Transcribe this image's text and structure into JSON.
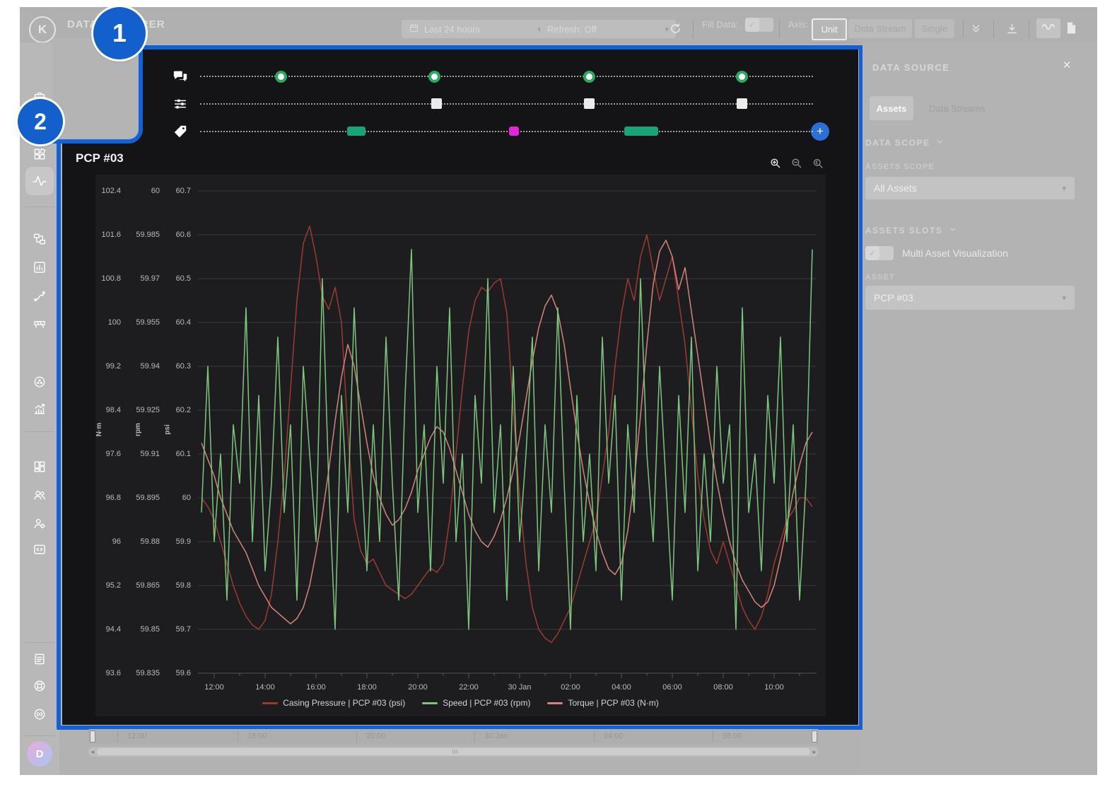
{
  "badges": {
    "one": "1",
    "two": "2"
  },
  "icons": {
    "chevron_down": "▾",
    "close": "×",
    "check": "✓",
    "plus": "+",
    "arrow_left": "◂",
    "arrow_right": "▸",
    "logo_letter": "K",
    "avatar_letter": "D"
  },
  "toolbar": {
    "title": "DATA EXPLORER",
    "time_range": "Last 24 hours",
    "refresh": "Refresh: Off",
    "fill_data_label": "Fill Data:",
    "axis_label": "Axis:",
    "axis_modes": [
      "Unit",
      "Data Stream",
      "Single"
    ],
    "axis_active": "Unit"
  },
  "tracks": {
    "rows": [
      {
        "icon": "chat-icon",
        "type": "dot",
        "markers": [
          {
            "pos": 13.1
          },
          {
            "pos": 38.2
          },
          {
            "pos": 63.4
          },
          {
            "pos": 88.4
          }
        ]
      },
      {
        "icon": "sliders-icon",
        "type": "square",
        "markers": [
          {
            "pos": 38.5
          },
          {
            "pos": 63.4
          },
          {
            "pos": 88.4
          }
        ]
      },
      {
        "icon": "tag-icon",
        "type": "pill",
        "markers": [
          {
            "pos": 25.5,
            "w": 26,
            "color": "#17a477"
          },
          {
            "pos": 51.2,
            "w": 14,
            "color": "#e326de"
          },
          {
            "pos": 72.0,
            "w": 48,
            "color": "#17a477"
          }
        ]
      }
    ]
  },
  "chart": {
    "title": "PCP #03",
    "chart_data": {
      "type": "line",
      "title": "PCP #03",
      "grid": true,
      "legend_position": "bottom",
      "x_tick_labels": [
        "12:00",
        "14:00",
        "16:00",
        "18:00",
        "20:00",
        "22:00",
        "30 Jan",
        "02:00",
        "04:00",
        "06:00",
        "08:00",
        "10:00"
      ],
      "axes": [
        {
          "unit": "N·m",
          "min": 93.6,
          "max": 102.4,
          "ticks": [
            "102.4",
            "101.6",
            "100.8",
            "100",
            "99.2",
            "98.4",
            "97.6",
            "96.8",
            "96",
            "95.2",
            "94.4",
            "93.6"
          ]
        },
        {
          "unit": "rpm",
          "min": 59.835,
          "max": 60.0,
          "ticks": [
            "60",
            "59.985",
            "59.97",
            "59.955",
            "59.94",
            "59.925",
            "59.91",
            "59.895",
            "59.88",
            "59.865",
            "59.85",
            "59.835"
          ]
        },
        {
          "unit": "psi",
          "min": 59.6,
          "max": 60.7,
          "ticks": [
            "60.7",
            "60.6",
            "60.5",
            "60.4",
            "60.3",
            "60.2",
            "60.1",
            "60",
            "59.9",
            "59.8",
            "59.7",
            "59.6"
          ]
        }
      ],
      "series": [
        {
          "name": "Casing Pressure | PCP #03 (psi)",
          "unit": "psi",
          "color": "#9c3a32",
          "min": 59.6,
          "max": 60.7,
          "values": [
            60.0,
            59.98,
            59.95,
            59.9,
            59.85,
            59.8,
            59.76,
            59.73,
            59.71,
            59.7,
            59.72,
            59.78,
            59.9,
            60.05,
            60.25,
            60.45,
            60.58,
            60.62,
            60.55,
            60.46,
            60.43,
            60.48,
            60.4,
            60.15,
            59.95,
            59.88,
            59.85,
            59.86,
            59.83,
            59.8,
            59.79,
            59.78,
            59.77,
            59.78,
            59.8,
            59.82,
            59.84,
            59.83,
            59.85,
            59.95,
            60.1,
            60.25,
            60.38,
            60.45,
            60.48,
            60.47,
            60.49,
            60.5,
            60.42,
            60.2,
            60.0,
            59.85,
            59.75,
            59.7,
            59.68,
            59.67,
            59.69,
            59.72,
            59.75,
            59.8,
            59.85,
            59.9,
            59.95,
            60.05,
            60.15,
            60.3,
            60.42,
            60.5,
            60.45,
            60.55,
            60.6,
            60.52,
            60.45,
            60.5,
            60.55,
            60.45,
            60.35,
            60.2,
            60.05,
            59.95,
            59.88,
            59.85,
            59.9,
            59.85,
            59.8,
            59.75,
            59.72,
            59.7,
            59.73,
            59.78,
            59.85,
            59.9,
            59.95,
            59.97,
            60.0,
            60.0,
            59.98
          ]
        },
        {
          "name": "Speed | PCP #03 (rpm)",
          "unit": "rpm",
          "color": "#7dc77d",
          "min": 59.835,
          "max": 60.0,
          "values": [
            59.89,
            59.94,
            59.88,
            59.91,
            59.86,
            59.92,
            59.9,
            59.96,
            59.88,
            59.93,
            59.87,
            59.9,
            59.95,
            59.89,
            59.92,
            59.86,
            59.94,
            59.91,
            59.88,
            59.97,
            59.9,
            59.85,
            59.93,
            59.89,
            59.96,
            59.91,
            59.87,
            59.92,
            59.88,
            59.95,
            59.9,
            59.86,
            59.93,
            59.98,
            59.89,
            59.92,
            59.87,
            59.94,
            59.9,
            59.96,
            59.88,
            59.91,
            59.85,
            59.93,
            59.9,
            59.97,
            59.89,
            59.92,
            59.86,
            59.94,
            59.88,
            59.91,
            59.95,
            59.87,
            59.92,
            59.89,
            59.96,
            59.9,
            59.85,
            59.93,
            59.88,
            59.91,
            59.87,
            59.95,
            59.9,
            59.93,
            59.86,
            59.92,
            59.89,
            59.97,
            59.91,
            59.88,
            59.94,
            59.9,
            59.86,
            59.93,
            59.89,
            59.95,
            59.87,
            59.91,
            59.88,
            59.94,
            59.9,
            59.92,
            59.85,
            59.96,
            59.89,
            59.91,
            59.87,
            59.93,
            59.9,
            59.95,
            59.88,
            59.92,
            59.86,
            59.9,
            59.98
          ]
        },
        {
          "name": "Torque | PCP #03 (N·m)",
          "unit": "N·m",
          "color": "#d4837b",
          "min": 93.6,
          "max": 102.4,
          "values": [
            97.8,
            97.5,
            97.2,
            96.8,
            96.5,
            96.2,
            96.0,
            95.8,
            95.5,
            95.2,
            95.0,
            94.8,
            94.7,
            94.6,
            94.5,
            94.6,
            94.8,
            95.2,
            95.8,
            96.5,
            97.3,
            98.2,
            99.0,
            99.6,
            99.2,
            98.5,
            97.8,
            97.2,
            96.8,
            96.5,
            96.3,
            96.4,
            96.6,
            96.9,
            97.3,
            97.6,
            97.9,
            98.1,
            98.0,
            97.7,
            97.3,
            96.9,
            96.5,
            96.2,
            96.0,
            95.9,
            96.1,
            96.4,
            96.8,
            97.3,
            97.9,
            98.6,
            99.3,
            99.9,
            100.3,
            100.5,
            100.2,
            99.6,
            98.8,
            98.0,
            97.3,
            96.7,
            96.2,
            95.8,
            95.5,
            95.4,
            95.6,
            96.2,
            97.1,
            98.3,
            99.6,
            100.7,
            101.3,
            101.5,
            101.2,
            100.6,
            101.0,
            100.2,
            99.4,
            98.6,
            97.8,
            97.1,
            96.5,
            96.0,
            95.6,
            95.3,
            95.1,
            94.9,
            94.8,
            94.9,
            95.2,
            95.7,
            96.3,
            96.9,
            97.4,
            97.8,
            98.0
          ]
        }
      ]
    }
  },
  "panel": {
    "header": "DATA SOURCE",
    "tabs": [
      "Assets",
      "Data Streams"
    ],
    "active_tab": "Assets",
    "data_scope_label": "DATA SCOPE",
    "assets_scope_label": "ASSETS SCOPE",
    "assets_scope_value": "All Assets",
    "assets_slots_label": "ASSETS SLOTS",
    "multi_asset_label": "Multi Asset Visualization",
    "asset_label": "ASSET",
    "asset_value": "PCP #03"
  },
  "timeline": {
    "labels": [
      "12:00",
      "16:00",
      "20:00",
      "30 Jan",
      "04:00",
      "08:00"
    ]
  },
  "colors": {
    "accent": "#1161d8",
    "marker_green": "#27ab5e",
    "pill_green": "#17a477",
    "pill_magenta": "#e326de",
    "dark_bg": "#141416",
    "card_bg": "#1d1d20"
  }
}
